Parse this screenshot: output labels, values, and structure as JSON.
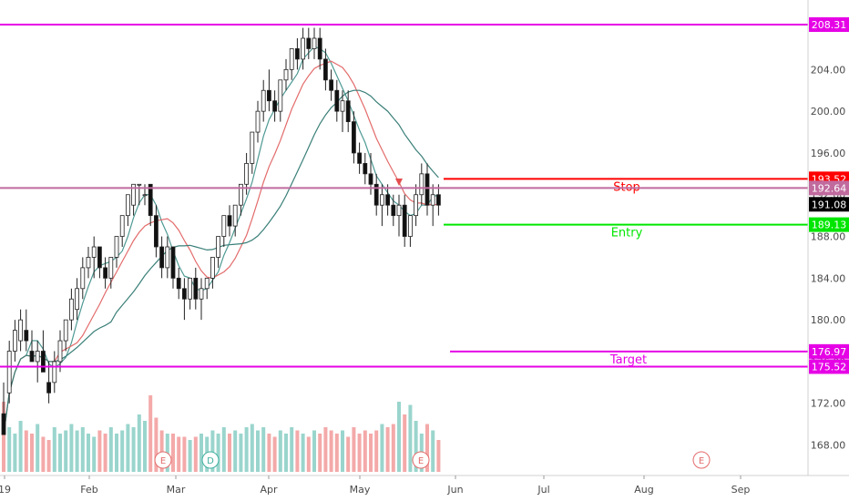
{
  "chart_data": {
    "type": "candlestick",
    "y_axis": {
      "ticks": [
        168,
        172,
        176,
        180,
        184,
        188,
        192,
        196,
        200,
        204,
        208
      ],
      "tick_labels": [
        "168.00",
        "172.00",
        "176.00",
        "180.00",
        "184.00",
        "188.00",
        "192.00",
        "196.00",
        "200.00",
        "204.00",
        "208.00"
      ],
      "range": [
        166.5,
        210
      ]
    },
    "x_axis": {
      "labels": [
        "19",
        "Feb",
        "Mar",
        "Apr",
        "May",
        "Jun",
        "Jul",
        "Aug",
        "Sep"
      ]
    },
    "levels": [
      {
        "label": "",
        "price": 208.31,
        "tag": "208.31",
        "color": "#e600e6"
      },
      {
        "label": "Stop",
        "price": 193.52,
        "tag": "193.52",
        "color": "#ff0000"
      },
      {
        "label": "",
        "price": 192.64,
        "tag": "192.64",
        "color": "#c06a9e"
      },
      {
        "label": "Entry",
        "price": 189.13,
        "tag": "189.13",
        "color": "#00e600"
      },
      {
        "label": "Target",
        "price": 176.97,
        "tag": "176.97",
        "color": "#e600e6"
      },
      {
        "label": "",
        "price": 175.52,
        "tag": "175.52",
        "color": "#e600e6"
      }
    ],
    "last_price": {
      "price": 191.08,
      "tag": "191.08",
      "color": "#000000"
    },
    "events": [
      "E",
      "D",
      "E",
      "E"
    ],
    "ohlc": [
      [
        171,
        174,
        169,
        169
      ],
      [
        173,
        178,
        172,
        177
      ],
      [
        177,
        180,
        176,
        179
      ],
      [
        178,
        181,
        177,
        180
      ],
      [
        179,
        181,
        177,
        178
      ],
      [
        177,
        179,
        176,
        176
      ],
      [
        176,
        178,
        174,
        177
      ],
      [
        177,
        179,
        175,
        175
      ],
      [
        174,
        176,
        172,
        173
      ],
      [
        174,
        177,
        173,
        176
      ],
      [
        176,
        179,
        175,
        178
      ],
      [
        178,
        180,
        177,
        180
      ],
      [
        180,
        183,
        179,
        182
      ],
      [
        181,
        184,
        180,
        183
      ],
      [
        183,
        186,
        182,
        185
      ],
      [
        185,
        187,
        184,
        186
      ],
      [
        186,
        188,
        184,
        187
      ],
      [
        187,
        187,
        184,
        185
      ],
      [
        185,
        186,
        183,
        184
      ],
      [
        184,
        186,
        183,
        186
      ],
      [
        186,
        188,
        185,
        188
      ],
      [
        188,
        190,
        187,
        190
      ],
      [
        190,
        192,
        189,
        192
      ],
      [
        191,
        193,
        190,
        193
      ],
      [
        193,
        193,
        191,
        193
      ],
      [
        192,
        193,
        191,
        192
      ],
      [
        193,
        193,
        189,
        190
      ],
      [
        190,
        191,
        186,
        187
      ],
      [
        187,
        188,
        184,
        185
      ],
      [
        185,
        188,
        184,
        187
      ],
      [
        187,
        187,
        183,
        184
      ],
      [
        184,
        185,
        182,
        183
      ],
      [
        183,
        184,
        180,
        182
      ],
      [
        182,
        184,
        181,
        184
      ],
      [
        184,
        185,
        181,
        182
      ],
      [
        182,
        184,
        180,
        183
      ],
      [
        183,
        184,
        182,
        184
      ],
      [
        184,
        186,
        183,
        186
      ],
      [
        186,
        188,
        185,
        188
      ],
      [
        188,
        190,
        187,
        190
      ],
      [
        190,
        191,
        188,
        189
      ],
      [
        189,
        191,
        188,
        191
      ],
      [
        191,
        193,
        190,
        193
      ],
      [
        193,
        196,
        192,
        195
      ],
      [
        195,
        198,
        194,
        198
      ],
      [
        198,
        201,
        197,
        200
      ],
      [
        200,
        203,
        199,
        202
      ],
      [
        202,
        204,
        200,
        201
      ],
      [
        201,
        202,
        199,
        200
      ],
      [
        200,
        203,
        199,
        203
      ],
      [
        203,
        205,
        202,
        204
      ],
      [
        204,
        206,
        203,
        206
      ],
      [
        206,
        207,
        204,
        205
      ],
      [
        205,
        208,
        204,
        207
      ],
      [
        207,
        208,
        205,
        206
      ],
      [
        206,
        208,
        205,
        207
      ],
      [
        207,
        208,
        204,
        205
      ],
      [
        205,
        206,
        202,
        203
      ],
      [
        203,
        204,
        201,
        202
      ],
      [
        202,
        203,
        199,
        200
      ],
      [
        200,
        202,
        198,
        201
      ],
      [
        201,
        202,
        198,
        199
      ],
      [
        199,
        200,
        195,
        196
      ],
      [
        196,
        197,
        194,
        195
      ],
      [
        195,
        196,
        193,
        194
      ],
      [
        194,
        196,
        192,
        193
      ],
      [
        193,
        194,
        190,
        191
      ],
      [
        191,
        193,
        189,
        192
      ],
      [
        192,
        193,
        190,
        191
      ],
      [
        191,
        192,
        189,
        190
      ],
      [
        190,
        192,
        188,
        191
      ],
      [
        191,
        192,
        187,
        188
      ],
      [
        188,
        190,
        187,
        190
      ],
      [
        190,
        193,
        189,
        192
      ],
      [
        192,
        195,
        191,
        194
      ],
      [
        194,
        195,
        190,
        191
      ],
      [
        191,
        193,
        189,
        192
      ],
      [
        192,
        193,
        190,
        191
      ]
    ],
    "volume": [
      22,
      14,
      12,
      16,
      13,
      12,
      15,
      11,
      10,
      14,
      12,
      13,
      15,
      13,
      14,
      12,
      11,
      13,
      12,
      14,
      12,
      13,
      15,
      14,
      18,
      16,
      24,
      17,
      13,
      12,
      12,
      11,
      11,
      10,
      11,
      12,
      11,
      13,
      12,
      14,
      12,
      13,
      12,
      14,
      15,
      13,
      14,
      12,
      11,
      13,
      12,
      14,
      13,
      12,
      11,
      13,
      12,
      14,
      13,
      12,
      13,
      11,
      14,
      12,
      13,
      12,
      13,
      15,
      14,
      15,
      22,
      18,
      21,
      16,
      12,
      15,
      13,
      10
    ]
  }
}
